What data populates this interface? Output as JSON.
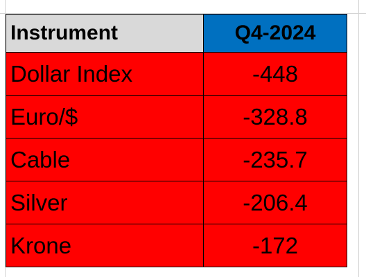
{
  "table": {
    "header": [
      "Instrument",
      "Q4-2024"
    ],
    "rows": [
      [
        "Dollar Index",
        -448
      ],
      [
        "Euro/$",
        -328.8
      ],
      [
        "Cable",
        -235.7
      ],
      [
        "Silver",
        -206.4
      ],
      [
        "Krone",
        -172
      ]
    ]
  }
}
